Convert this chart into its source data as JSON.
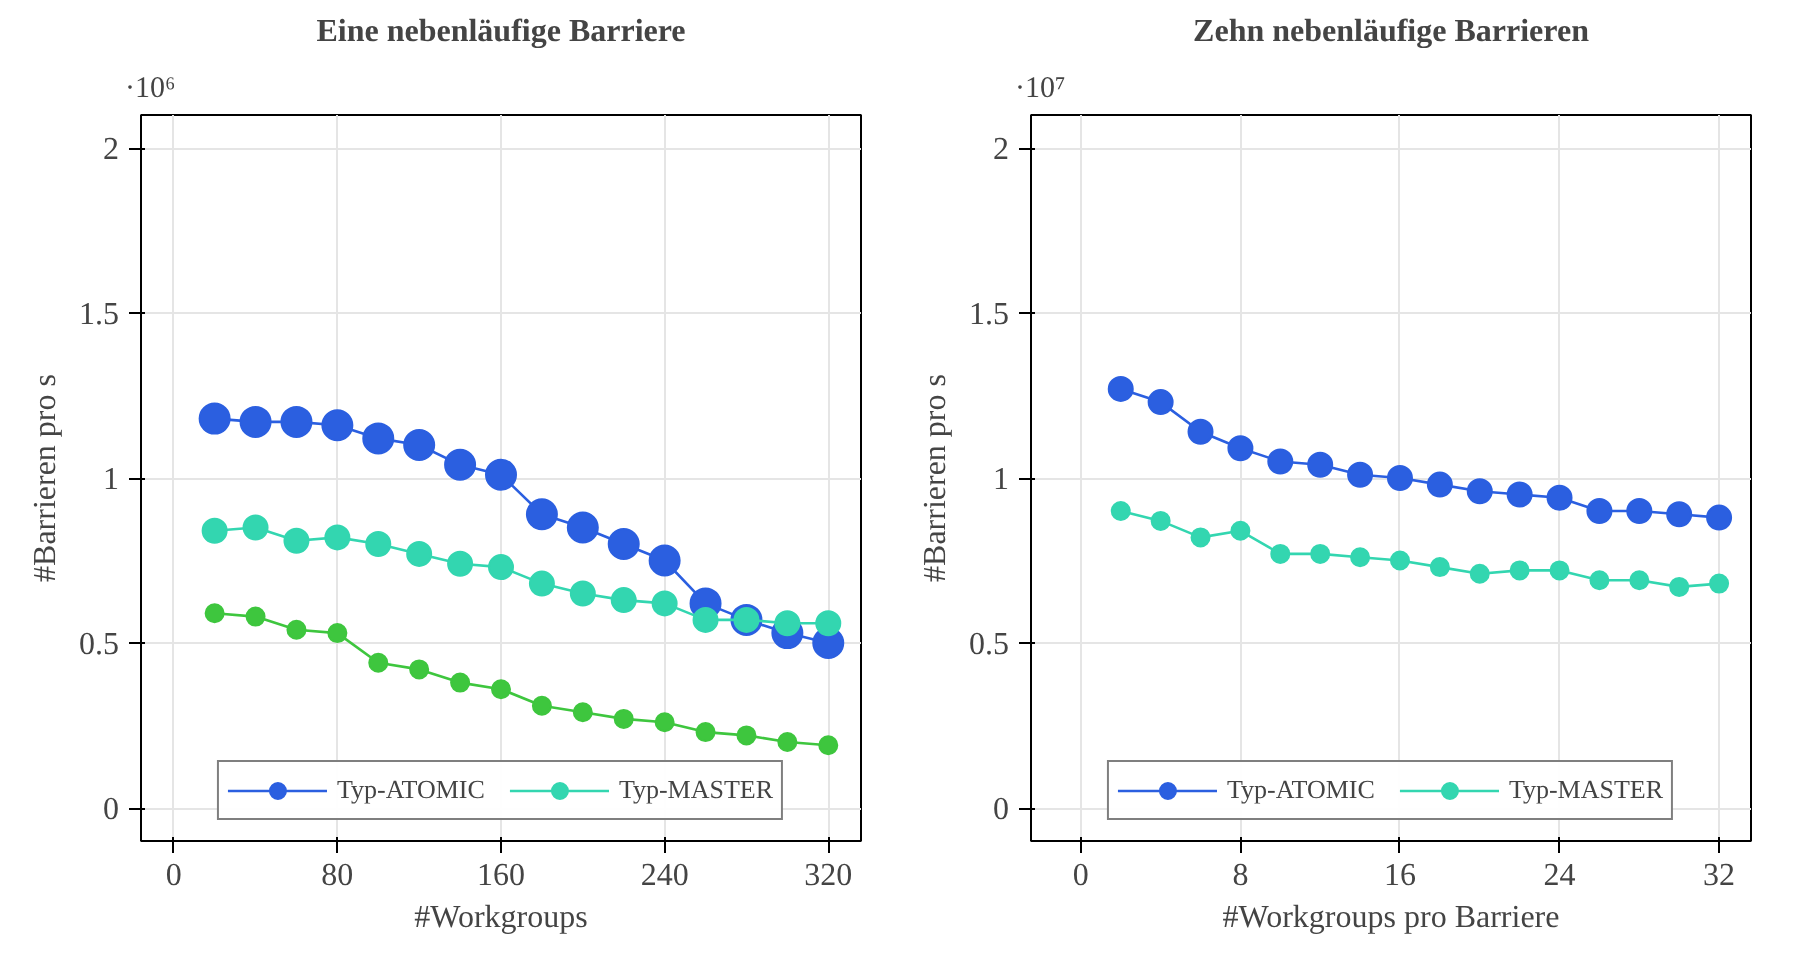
{
  "chart_data": [
    {
      "type": "line",
      "title": "Eine nebenläufige Barriere",
      "xlabel": "#Workgroups",
      "ylabel": "#Barrieren pro s",
      "annotations": [
        "·10⁶"
      ],
      "x": [
        20,
        40,
        60,
        80,
        100,
        120,
        140,
        160,
        180,
        200,
        220,
        240,
        260,
        280,
        300,
        320
      ],
      "xlim": [
        -16,
        336
      ],
      "xticks": [
        0,
        80,
        160,
        240,
        320
      ],
      "ylim": [
        -0.1,
        2.1
      ],
      "yticks": [
        0,
        0.5,
        1,
        1.5,
        2
      ],
      "grid": true,
      "marker": "circle",
      "line_style": "solid",
      "legend": "bottom",
      "series": [
        {
          "name": "Typ-ATOMIC",
          "color": "#2b5fe0",
          "values": [
            1.18,
            1.17,
            1.17,
            1.16,
            1.12,
            1.1,
            1.04,
            1.01,
            0.89,
            0.85,
            0.8,
            0.75,
            0.62,
            0.57,
            0.53,
            0.5
          ]
        },
        {
          "name": "Typ-MASTER",
          "color": "#33d6b0",
          "values": [
            0.84,
            0.85,
            0.81,
            0.82,
            0.8,
            0.77,
            0.74,
            0.73,
            0.68,
            0.65,
            0.63,
            0.62,
            0.57,
            0.57,
            0.56,
            0.56
          ]
        },
        {
          "color": "#3ec63e",
          "values": [
            0.59,
            0.58,
            0.54,
            0.53,
            0.44,
            0.42,
            0.38,
            0.36,
            0.31,
            0.29,
            0.27,
            0.26,
            0.23,
            0.22,
            0.2,
            0.19
          ]
        }
      ]
    },
    {
      "type": "line",
      "title": "Zehn nebenläufige Barrieren",
      "xlabel": "#Workgroups pro Barriere",
      "ylabel": "#Barrieren pro s",
      "annotations": [
        "·10⁷"
      ],
      "x": [
        2,
        4,
        6,
        8,
        10,
        12,
        14,
        16,
        18,
        20,
        22,
        24,
        26,
        28,
        30,
        32
      ],
      "xlim": [
        -2.5,
        33.6
      ],
      "xticks": [
        0,
        8,
        16,
        24,
        32
      ],
      "ylim": [
        -0.1,
        2.1
      ],
      "yticks": [
        0,
        0.5,
        1,
        1.5,
        2
      ],
      "grid": true,
      "marker": "circle",
      "line_style": "solid",
      "legend": "bottom",
      "series": [
        {
          "name": "Typ-ATOMIC",
          "color": "#2b5fe0",
          "values": [
            1.27,
            1.23,
            1.14,
            1.09,
            1.05,
            1.04,
            1.01,
            1.0,
            0.98,
            0.96,
            0.95,
            0.94,
            0.9,
            0.9,
            0.89,
            0.88
          ]
        },
        {
          "name": "Typ-MASTER",
          "color": "#33d6b0",
          "values": [
            0.9,
            0.87,
            0.82,
            0.84,
            0.77,
            0.77,
            0.76,
            0.75,
            0.73,
            0.71,
            0.72,
            0.72,
            0.69,
            0.69,
            0.67,
            0.68
          ]
        }
      ]
    }
  ]
}
